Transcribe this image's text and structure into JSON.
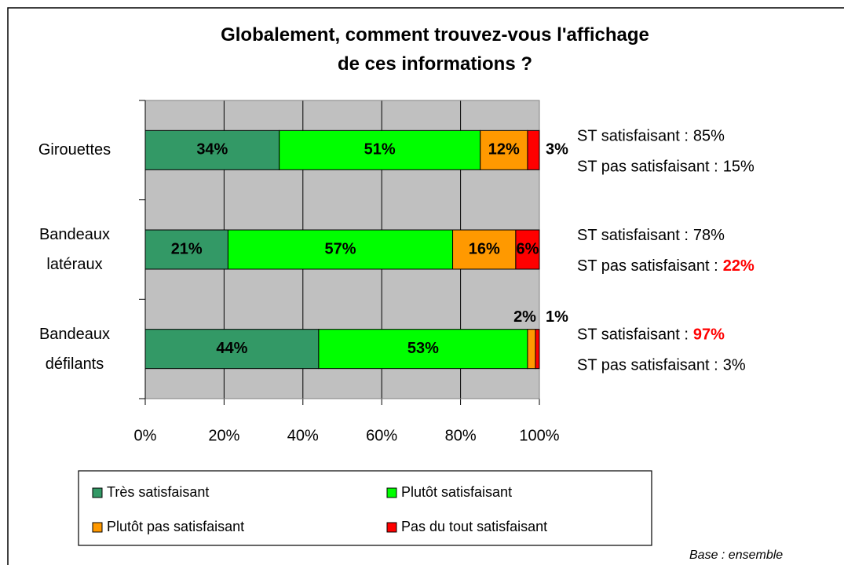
{
  "chart_data": {
    "type": "stacked_barh",
    "title": "Globalement, comment trouvez-vous l'affichage de ces informations ?",
    "categories": [
      "Girouettes",
      "Bandeaux latéraux",
      "Bandeaux défilants"
    ],
    "series": [
      {
        "name": "Très satisfaisant",
        "color": "#339966",
        "values": [
          34,
          21,
          44
        ],
        "value_labels": [
          "34%",
          "21%",
          "44%"
        ]
      },
      {
        "name": "Plutôt satisfaisant",
        "color": "#00ff00",
        "values": [
          51,
          57,
          53
        ],
        "value_labels": [
          "51%",
          "57%",
          "53%"
        ]
      },
      {
        "name": "Plutôt pas satisfaisant",
        "color": "#ff9900",
        "values": [
          12,
          16,
          2
        ],
        "value_labels": [
          "12%",
          "16%",
          "2%"
        ]
      },
      {
        "name": "Pas du tout satisfaisant",
        "color": "#ff0000",
        "values": [
          3,
          6,
          1
        ],
        "value_labels": [
          "3%",
          "6%",
          "1%"
        ]
      }
    ],
    "xlim": [
      0,
      100
    ],
    "xticks": [
      {
        "value": 0,
        "label": "0%"
      },
      {
        "value": 20,
        "label": "20%"
      },
      {
        "value": 40,
        "label": "40%"
      },
      {
        "value": 60,
        "label": "60%"
      },
      {
        "value": 80,
        "label": "80%"
      },
      {
        "value": 100,
        "label": "100%"
      }
    ],
    "grid": true,
    "legend": "bottom",
    "annotations": [
      [
        {
          "label": "ST satisfaisant :",
          "value_label": "85%",
          "highlight": false
        },
        {
          "label": "ST pas satisfaisant :",
          "value_label": "15%",
          "highlight": false
        }
      ],
      [
        {
          "label": "ST satisfaisant :",
          "value_label": "78%",
          "highlight": false
        },
        {
          "label": "ST pas satisfaisant :",
          "value_label": "22%",
          "highlight": true
        }
      ],
      [
        {
          "label": "ST satisfaisant :",
          "value_label": "97%",
          "highlight": true
        },
        {
          "label": "ST pas satisfaisant :",
          "value_label": "3%",
          "highlight": false
        }
      ]
    ],
    "footnote": "Base : ensemble"
  }
}
